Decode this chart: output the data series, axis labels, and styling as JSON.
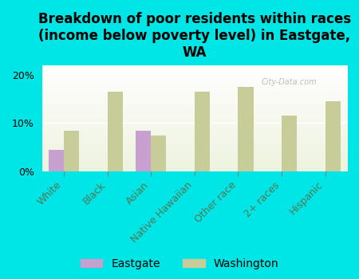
{
  "title": "Breakdown of poor residents within races\n(income below poverty level) in Eastgate,\nWA",
  "categories": [
    "White",
    "Black",
    "Asian",
    "Native Hawaiian",
    "Other race",
    "2+ races",
    "Hispanic"
  ],
  "eastgate_values": [
    4.5,
    0,
    8.5,
    0,
    0,
    0,
    0
  ],
  "washington_values": [
    8.5,
    16.5,
    7.5,
    16.5,
    17.5,
    11.5,
    14.5
  ],
  "eastgate_color": "#c8a0d0",
  "washington_color": "#c8cc99",
  "background_color": "#00e5e5",
  "plot_bg_top": "#ffffff",
  "plot_bg_bot": "#eef3df",
  "ylim": [
    0,
    22
  ],
  "yticks": [
    0,
    10,
    20
  ],
  "ytick_labels": [
    "0%",
    "10%",
    "20%"
  ],
  "bar_width": 0.35,
  "title_fontsize": 12,
  "tick_fontsize": 9,
  "legend_fontsize": 10,
  "watermark": "City-Data.com"
}
